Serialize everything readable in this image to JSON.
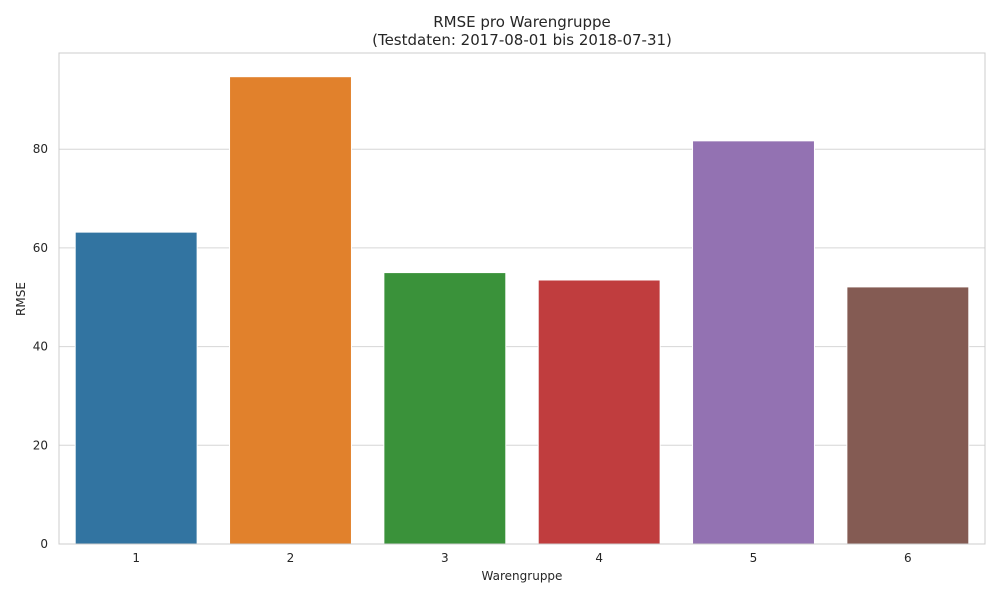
{
  "chart_data": {
    "type": "bar",
    "title": "RMSE pro Warengruppe",
    "subtitle": "(Testdaten: 2017-08-01 bis 2018-07-31)",
    "xlabel": "Warengruppe",
    "ylabel": "RMSE",
    "categories": [
      "1",
      "2",
      "3",
      "4",
      "5",
      "6"
    ],
    "values": [
      63.2,
      94.7,
      55.0,
      53.5,
      81.7,
      52.1
    ],
    "colors": [
      "#3274a1",
      "#e1812c",
      "#3a923a",
      "#c03d3e",
      "#9372b2",
      "#845b53"
    ],
    "yticks": [
      0,
      20,
      40,
      60,
      80
    ],
    "ylim": [
      0,
      99.5
    ],
    "grid": true,
    "legend": "none"
  }
}
